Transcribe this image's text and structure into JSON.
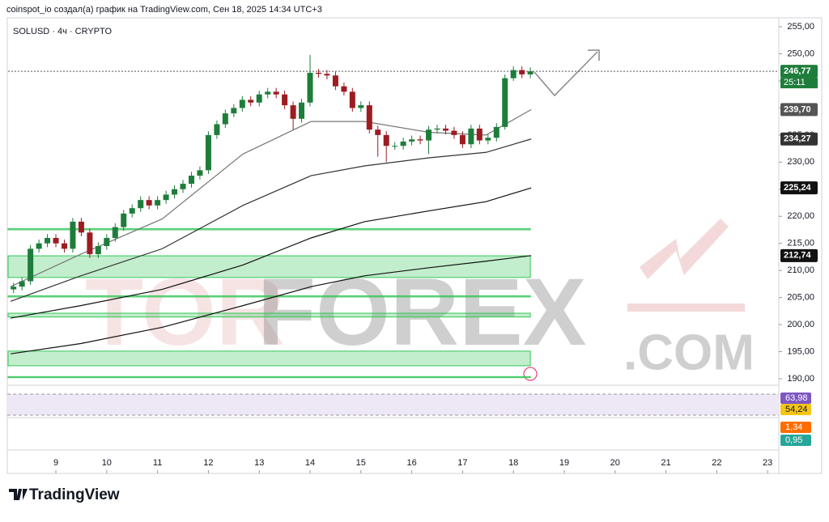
{
  "header": {
    "title": "coinspot_io создал(а) график на TradingView.com, Сен 18, 2025 14:34 UTC+3"
  },
  "footer": {
    "brand": "TradingView"
  },
  "chart_data": {
    "type": "candlestick",
    "title": "SOLUSD · 4ч · CRYPTO",
    "watermark": [
      "TOR",
      "FOREX",
      ".COM"
    ],
    "xlim": [
      8.06,
      23.22
    ],
    "xticks": [
      9,
      10,
      11,
      12,
      13,
      14,
      15,
      16,
      17,
      18,
      19,
      20,
      21,
      22,
      23
    ],
    "ylim": [
      188.95,
      256.5
    ],
    "yticks": [
      {
        "value": 190,
        "label": "190,00"
      },
      {
        "value": 195,
        "label": "195,00"
      },
      {
        "value": 200,
        "label": "200,00"
      },
      {
        "value": 205,
        "label": "205,00"
      },
      {
        "value": 210,
        "label": "210,00"
      },
      {
        "value": 215,
        "label": "215,00"
      },
      {
        "value": 220,
        "label": "220,00"
      },
      {
        "value": 225,
        "label": "225,00"
      },
      {
        "value": 230,
        "label": "230,00"
      },
      {
        "value": 235,
        "label": "235,00"
      },
      {
        "value": 240,
        "label": "240,00"
      },
      {
        "value": 245,
        "label": "245,00"
      },
      {
        "value": 250,
        "label": "250,00"
      },
      {
        "value": 255,
        "label": "255,00"
      }
    ],
    "up_color": "#1e7d3a",
    "down_color": "#9c1c22",
    "x": [
      8.167,
      8.333,
      8.5,
      8.667,
      8.833,
      9,
      9.167,
      9.333,
      9.5,
      9.667,
      9.833,
      10,
      10.167,
      10.333,
      10.5,
      10.667,
      10.833,
      11,
      11.167,
      11.333,
      11.5,
      11.667,
      11.833,
      12,
      12.167,
      12.333,
      12.5,
      12.667,
      12.833,
      13,
      13.167,
      13.333,
      13.5,
      13.667,
      13.833,
      14,
      14.167,
      14.333,
      14.5,
      14.667,
      14.833,
      15,
      15.167,
      15.333,
      15.5,
      15.667,
      15.833,
      16,
      16.167,
      16.333,
      16.5,
      16.667,
      16.833,
      17,
      17.167,
      17.333,
      17.5,
      17.667,
      17.833,
      18,
      18.167,
      18.333
    ],
    "open": [
      206.5,
      207,
      208,
      214,
      215,
      216,
      215,
      214,
      219,
      217,
      213,
      214.5,
      216,
      218,
      220.5,
      221.5,
      223,
      222,
      223,
      224,
      225,
      226,
      227.5,
      228.5,
      235,
      237,
      239,
      240,
      241.5,
      241,
      242.5,
      243,
      242.5,
      240.5,
      238,
      241,
      246.5,
      246.3,
      246,
      244,
      243,
      240,
      240.5,
      236,
      235,
      233,
      233,
      233.8,
      234.2,
      234,
      236,
      236.2,
      235.8,
      235,
      233.3,
      236.2,
      234,
      234.5,
      236.5,
      245.5,
      247,
      246.2
    ],
    "high": [
      207.7,
      208.7,
      214.7,
      215.7,
      216.7,
      216.7,
      215.7,
      219.7,
      219.7,
      217.7,
      215.2,
      216.7,
      218.7,
      221.2,
      222.2,
      223.7,
      223.7,
      223.7,
      224.7,
      225.7,
      226.7,
      228.2,
      229.2,
      235.7,
      237.7,
      239.7,
      240.7,
      242.2,
      242.2,
      243.2,
      243.7,
      243.7,
      243.2,
      241.2,
      241.7,
      249.8,
      247.2,
      247,
      246.7,
      244.7,
      243.7,
      241.2,
      241.2,
      236.7,
      235.7,
      233.7,
      234.5,
      234.9,
      234.9,
      236.7,
      236.9,
      236.9,
      236.5,
      235.7,
      236.9,
      236.9,
      235.2,
      237.2,
      246.2,
      247.7,
      247.7,
      247.5
    ],
    "low": [
      205.8,
      206.3,
      207.3,
      213.3,
      214.3,
      214.3,
      213.3,
      213.3,
      216.3,
      212.3,
      212.3,
      213.8,
      215.3,
      217.3,
      219.8,
      220.8,
      221.3,
      221.3,
      222.3,
      223.3,
      224.3,
      225.3,
      226.8,
      227.8,
      234.3,
      236.3,
      238.3,
      239.3,
      240.3,
      240.3,
      241.8,
      241.8,
      239.8,
      236,
      237.3,
      240.3,
      245.6,
      245.3,
      243.3,
      242.3,
      239.3,
      239.3,
      235.3,
      231,
      230,
      232.3,
      232.3,
      233.1,
      233.3,
      231.5,
      235.3,
      235.1,
      234.3,
      232.6,
      232.6,
      233.3,
      233.3,
      233.8,
      236,
      245,
      245.5,
      245.5
    ],
    "close": [
      207,
      208,
      214,
      215,
      216,
      215,
      214,
      219,
      217,
      213,
      214.5,
      216,
      218,
      220.5,
      221.5,
      223,
      222,
      223,
      224,
      225,
      226,
      227.5,
      228.5,
      235,
      237,
      239,
      240,
      241.5,
      241,
      242.5,
      243,
      242.5,
      240.5,
      238,
      241,
      246.5,
      246.3,
      246,
      244,
      243,
      240,
      240.5,
      236,
      235,
      233,
      233,
      233.8,
      234.2,
      234,
      236,
      236.2,
      235.8,
      235,
      233.3,
      236.2,
      234,
      234.5,
      236.5,
      245.5,
      247,
      246.2,
      246.77
    ],
    "series": [
      {
        "color": "#777777",
        "x": [
          8.11,
          9.49,
          11.09,
          12.68,
          14.02,
          15.07,
          16.34,
          17.46,
          18.35
        ],
        "values": [
          207,
          213,
          219.5,
          231.5,
          237.5,
          237.5,
          235.5,
          235,
          239.7
        ]
      },
      {
        "color": "#333333",
        "x": [
          8.11,
          9.49,
          11.09,
          12.68,
          14.02,
          15.07,
          16.34,
          17.46,
          18.35
        ],
        "values": [
          204.3,
          209,
          214,
          222,
          227.5,
          229.3,
          230.8,
          231.8,
          234.27
        ]
      },
      {
        "color": "#111111",
        "x": [
          8.11,
          9.49,
          11.09,
          12.68,
          14.02,
          15.07,
          16.34,
          17.46,
          18.35
        ],
        "values": [
          201.2,
          203.5,
          206.5,
          211,
          216,
          219,
          221,
          222.7,
          225.24
        ]
      },
      {
        "color": "#111111",
        "x": [
          8.11,
          9.49,
          11.09,
          12.68,
          14.02,
          15.07,
          16.34,
          17.46,
          18.35
        ],
        "values": [
          194.6,
          196.5,
          199.5,
          203.5,
          207,
          209,
          210.5,
          211.7,
          212.74
        ]
      }
    ],
    "zones": [
      [
        208.7,
        212.7
      ],
      [
        217.5,
        217.7
      ],
      [
        205.1,
        205.3
      ],
      [
        201.4,
        202.1
      ],
      [
        192.4,
        195.1
      ],
      [
        190.2,
        190.4
      ]
    ],
    "zone_color": "#34c759",
    "price_labels": [
      {
        "value": 246.77,
        "label": "246,77",
        "color": "#1e7d3a"
      },
      {
        "value": 239.7,
        "label": "239,70",
        "color": "#555555"
      },
      {
        "value": 234.27,
        "label": "234,27",
        "color": "#333333"
      },
      {
        "value": 225.24,
        "label": "225,24",
        "color": "#111111"
      },
      {
        "value": 212.74,
        "label": "212,74",
        "color": "#111111"
      }
    ],
    "countdown": "25:11",
    "indicator_labels": [
      {
        "label": "63,98",
        "color": "#7e57c2"
      },
      {
        "label": "54,24",
        "color": "#f5c518"
      },
      {
        "label": "1,34",
        "color": "#ff6d00"
      },
      {
        "label": "0,95",
        "color": "#26a69a"
      }
    ]
  }
}
